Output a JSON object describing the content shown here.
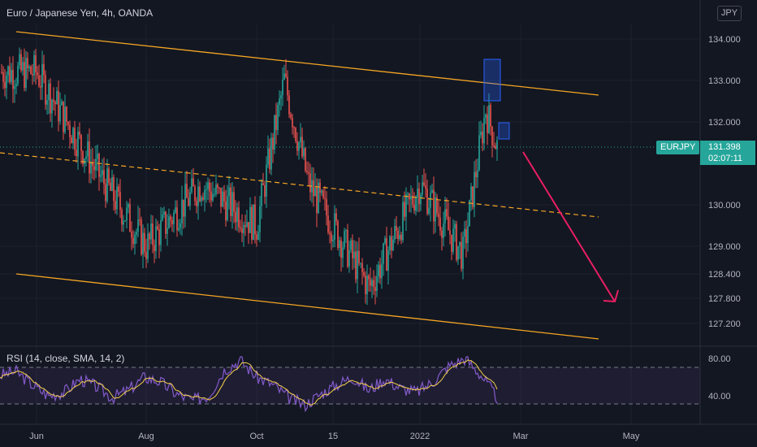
{
  "header": {
    "title": "Euro / Japanese Yen, 4h, OANDA",
    "currency_button": "JPY"
  },
  "badges": {
    "symbol": "EURJPY",
    "last_price": "131.398",
    "countdown": "02:07:11"
  },
  "rsi": {
    "label": "RSI (14, close, SMA, 14, 2)"
  },
  "colors": {
    "background": "#131722",
    "up_candle": "#26a69a",
    "down_candle": "#ef5350",
    "channel": "#f5a623",
    "arrow": "#e91e63",
    "box": "#2962ff",
    "rsi_line": "#7e57c2",
    "rsi_sma": "#f5d04a"
  },
  "chart_data": [
    {
      "type": "candlestick",
      "title": "Euro / Japanese Yen, 4h, OANDA",
      "y_ticks": [
        "134.000",
        "133.000",
        "132.000",
        "130.000",
        "129.000",
        "128.400",
        "127.800",
        "127.200"
      ],
      "x_ticks": [
        "Jun",
        "Aug",
        "Oct",
        "15",
        "2022",
        "Mar",
        "May"
      ],
      "approx_close_path": [
        {
          "x": "Jun",
          "y": 133.2
        },
        {
          "x": "Jul",
          "y": 131.0
        },
        {
          "x": "Aug",
          "y": 129.0
        },
        {
          "x": "Sep",
          "y": 130.5
        },
        {
          "x": "Oct",
          "y": 129.5
        },
        {
          "x": "Oct 20",
          "y": 133.0
        },
        {
          "x": "Nov",
          "y": 130.5
        },
        {
          "x": "Dec",
          "y": 128.0
        },
        {
          "x": "2022",
          "y": 130.5
        },
        {
          "x": "Feb",
          "y": 128.8
        },
        {
          "x": "Feb 10",
          "y": 132.3
        },
        {
          "x": "Feb 16",
          "y": 131.398
        }
      ],
      "last_price": 131.398
    },
    {
      "type": "line",
      "title": "RSI (14, close, SMA, 14, 2)",
      "y_ticks": [
        "80.00",
        "40.00"
      ],
      "series": [
        {
          "values": [
            62,
            66,
            52,
            40,
            44,
            58,
            50,
            38,
            46,
            60,
            55,
            42,
            35,
            40,
            68,
            78,
            60,
            52,
            38,
            30,
            42,
            52,
            60,
            46,
            58,
            48,
            44,
            55,
            72,
            80,
            62,
            38
          ]
        }
      ]
    }
  ]
}
